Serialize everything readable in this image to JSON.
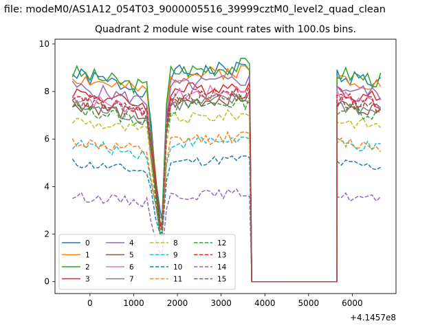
{
  "figure": {
    "suptitle": "n file: modeM0/AS1A12_054T03_9000005516_39999cztM0_level2_quad_clean",
    "title": "Quadrant 2 module wise count rates with 100.0s bins."
  },
  "chart_data": {
    "type": "line",
    "title": "Quadrant 2 module wise count rates with 100.0s bins.",
    "xlabel": "",
    "ylabel": "",
    "x_offset_label": "+4.1457e8",
    "xlim": [
      -800,
      7000
    ],
    "ylim": [
      -0.5,
      10.2
    ],
    "xticks": [
      0,
      1000,
      2000,
      3000,
      4000,
      5000,
      6000
    ],
    "yticks": [
      0,
      2,
      4,
      6,
      8,
      10
    ],
    "grid": false,
    "legend": {
      "position": "lower-left",
      "ncol": 4
    },
    "series": [
      {
        "name": "0",
        "color": "#1f77b4",
        "dash": "solid",
        "level": 8.7,
        "dip": 2.6,
        "amp": 0.35
      },
      {
        "name": "1",
        "color": "#ff7f0e",
        "dash": "solid",
        "level": 8.6,
        "dip": 2.5,
        "amp": 0.3
      },
      {
        "name": "2",
        "color": "#2ca02c",
        "dash": "solid",
        "level": 8.8,
        "dip": 2.7,
        "amp": 0.35
      },
      {
        "name": "3",
        "color": "#d62728",
        "dash": "solid",
        "level": 8.0,
        "dip": 2.4,
        "amp": 0.3
      },
      {
        "name": "4",
        "color": "#9467bd",
        "dash": "solid",
        "level": 8.2,
        "dip": 2.3,
        "amp": 0.3
      },
      {
        "name": "5",
        "color": "#8c564b",
        "dash": "solid",
        "level": 7.5,
        "dip": 2.2,
        "amp": 0.3
      },
      {
        "name": "6",
        "color": "#e377c2",
        "dash": "solid",
        "level": 7.8,
        "dip": 2.3,
        "amp": 0.3
      },
      {
        "name": "7",
        "color": "#7f7f7f",
        "dash": "solid",
        "level": 7.4,
        "dip": 2.1,
        "amp": 0.3
      },
      {
        "name": "8",
        "color": "#bcbd22",
        "dash": "dashed",
        "level": 6.8,
        "dip": 2.0,
        "amp": 0.25
      },
      {
        "name": "9",
        "color": "#17becf",
        "dash": "dashed",
        "level": 5.8,
        "dip": 2.0,
        "amp": 0.25
      },
      {
        "name": "10",
        "color": "#1f77b4",
        "dash": "dashed",
        "level": 5.0,
        "dip": 1.9,
        "amp": 0.2
      },
      {
        "name": "11",
        "color": "#ff7f0e",
        "dash": "dashed",
        "level": 5.9,
        "dip": 2.0,
        "amp": 0.25
      },
      {
        "name": "12",
        "color": "#2ca02c",
        "dash": "dashed",
        "level": 7.3,
        "dip": 2.1,
        "amp": 0.3
      },
      {
        "name": "13",
        "color": "#d62728",
        "dash": "dashed",
        "level": 7.7,
        "dip": 2.2,
        "amp": 0.3
      },
      {
        "name": "14",
        "color": "#9467bd",
        "dash": "dashed",
        "level": 3.6,
        "dip": 1.2,
        "amp": 0.2
      },
      {
        "name": "15",
        "color": "#8c564b",
        "dash": "dashed",
        "level": 7.6,
        "dip": 2.2,
        "amp": 0.3
      }
    ],
    "segments": [
      {
        "x_start": -400,
        "x_end": 1650,
        "trend_to": -0.7
      },
      {
        "x_start": 1650,
        "x_end": 3700,
        "trend_to": 0.3
      },
      {
        "x_start": 5650,
        "x_end": 6650,
        "trend_to": -0.3
      }
    ],
    "zero_interval": [
      3700,
      5650
    ]
  }
}
